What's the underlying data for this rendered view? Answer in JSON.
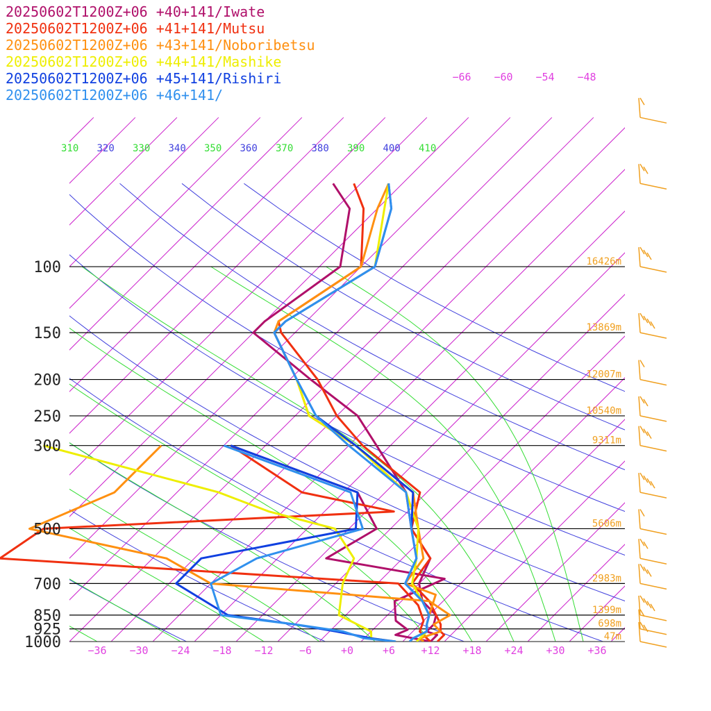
{
  "colors": {
    "isotherm": "#cc22cc",
    "theta": "#4040dd",
    "thetae": "#33dd33",
    "isobar": "#000000",
    "pressure_label": "#222222",
    "temp_label": "#e040e0",
    "height_label": "#f0a020",
    "wind_barb": "#f0a020"
  },
  "chart_data": {
    "type": "line",
    "title": "",
    "legend_position": "top-left",
    "pressure_levels": [
      100,
      150,
      200,
      250,
      300,
      500,
      700,
      850,
      925,
      1000
    ],
    "pressure_labels": [
      "100",
      "150",
      "200",
      "250",
      "300",
      "500",
      "700",
      "850",
      "925",
      "1000"
    ],
    "temp_ticks": [
      -36,
      -30,
      -24,
      -18,
      -12,
      -6,
      0,
      6,
      12,
      18,
      24,
      30,
      36
    ],
    "temp_tick_labels": [
      "−36",
      "−30",
      "−24",
      "−18",
      "−12",
      "−6",
      "+0",
      "+6",
      "+12",
      "+18",
      "+24",
      "+30",
      "+36"
    ],
    "xlim": [
      -40,
      40
    ],
    "upper_temp_labels": [
      "−66",
      "−60",
      "−54",
      "−48"
    ],
    "theta_labels": [
      {
        "text": "310",
        "kind": "thetae"
      },
      {
        "text": "320",
        "kind": "theta"
      },
      {
        "text": "330",
        "kind": "thetae"
      },
      {
        "text": "340",
        "kind": "theta"
      },
      {
        "text": "350",
        "kind": "thetae"
      },
      {
        "text": "360",
        "kind": "theta"
      },
      {
        "text": "370",
        "kind": "thetae"
      },
      {
        "text": "380",
        "kind": "theta"
      },
      {
        "text": "390",
        "kind": "thetae"
      },
      {
        "text": "400",
        "kind": "theta"
      },
      {
        "text": "410",
        "kind": "thetae"
      }
    ],
    "heights": [
      {
        "p": 100,
        "label": "16426m"
      },
      {
        "p": 150,
        "label": "13869m"
      },
      {
        "p": 200,
        "label": "12007m"
      },
      {
        "p": 250,
        "label": "10540m"
      },
      {
        "p": 300,
        "label": "9311m"
      },
      {
        "p": 500,
        "label": "5606m"
      },
      {
        "p": 700,
        "label": "2983m"
      },
      {
        "p": 850,
        "label": "1399m"
      },
      {
        "p": 925,
        "label": "698m"
      },
      {
        "p": 1000,
        "label": "47m"
      }
    ],
    "series": [
      {
        "name": "20250602T1200Z+06 +40+141/Iwate",
        "color": "#b0106a",
        "temp": [
          [
            60,
            -68
          ],
          [
            70,
            -62
          ],
          [
            100,
            -55
          ],
          [
            140,
            -58
          ],
          [
            150,
            -58
          ],
          [
            200,
            -43
          ],
          [
            250,
            -31
          ],
          [
            300,
            -24
          ],
          [
            400,
            -13
          ],
          [
            500,
            -7
          ],
          [
            600,
            0
          ],
          [
            700,
            2
          ],
          [
            780,
            5
          ],
          [
            850,
            9
          ],
          [
            900,
            10
          ],
          [
            940,
            10
          ],
          [
            960,
            12
          ],
          [
            1000,
            12
          ]
        ],
        "dewp": [
          [
            300,
            -45
          ],
          [
            400,
            -20
          ],
          [
            500,
            -12
          ],
          [
            600,
            -15
          ],
          [
            680,
            5
          ],
          [
            780,
            1
          ],
          [
            880,
            4
          ],
          [
            930,
            7
          ],
          [
            960,
            6
          ],
          [
            1000,
            12
          ]
        ]
      },
      {
        "name": "20250602T1200Z+06 +41+141/Mutsu",
        "color": "#f03010",
        "temp": [
          [
            60,
            -65
          ],
          [
            70,
            -60
          ],
          [
            100,
            -52
          ],
          [
            140,
            -56
          ],
          [
            150,
            -54
          ],
          [
            200,
            -42
          ],
          [
            250,
            -34
          ],
          [
            300,
            -26
          ],
          [
            400,
            -11
          ],
          [
            500,
            -7
          ],
          [
            600,
            0
          ],
          [
            700,
            1
          ],
          [
            780,
            6
          ],
          [
            850,
            9
          ],
          [
            900,
            11
          ],
          [
            940,
            12
          ],
          [
            960,
            13
          ],
          [
            1000,
            13
          ]
        ],
        "dewp": [
          [
            300,
            -45
          ],
          [
            400,
            -28
          ],
          [
            450,
            -12
          ],
          [
            500,
            -60
          ],
          [
            600,
            -62
          ],
          [
            700,
            -1
          ],
          [
            800,
            5
          ],
          [
            880,
            8
          ],
          [
            940,
            9
          ],
          [
            980,
            11
          ],
          [
            1000,
            12
          ]
        ]
      },
      {
        "name": "20250602T1200Z+06 +43+141/Noboribetsu",
        "color": "#ff9010",
        "temp": [
          [
            60,
            -60
          ],
          [
            70,
            -58
          ],
          [
            100,
            -52
          ],
          [
            140,
            -56
          ],
          [
            150,
            -55
          ],
          [
            200,
            -45
          ],
          [
            250,
            -38
          ],
          [
            300,
            -27
          ],
          [
            400,
            -12
          ],
          [
            500,
            -6
          ],
          [
            600,
            -1
          ],
          [
            700,
            0
          ],
          [
            750,
            6
          ],
          [
            850,
            8
          ],
          [
            900,
            9
          ],
          [
            940,
            10
          ],
          [
            980,
            10
          ],
          [
            1000,
            11
          ]
        ],
        "dewp": [
          [
            300,
            -55
          ],
          [
            400,
            -55
          ],
          [
            500,
            -62
          ],
          [
            600,
            -38
          ],
          [
            700,
            -28
          ],
          [
            780,
            6
          ],
          [
            850,
            11
          ],
          [
            900,
            10
          ],
          [
            940,
            12
          ],
          [
            980,
            10
          ],
          [
            1000,
            11
          ]
        ]
      },
      {
        "name": "20250602T1200Z+06 +44+141/Mashike",
        "color": "#eeee00",
        "temp": [
          [
            60,
            -60
          ],
          [
            70,
            -57
          ],
          [
            100,
            -50
          ],
          [
            140,
            -55
          ],
          [
            150,
            -55
          ],
          [
            200,
            -45
          ],
          [
            250,
            -38
          ],
          [
            300,
            -27
          ],
          [
            400,
            -13
          ],
          [
            500,
            -6
          ],
          [
            600,
            -2
          ],
          [
            700,
            1
          ],
          [
            780,
            5
          ],
          [
            850,
            8
          ],
          [
            900,
            9
          ],
          [
            940,
            10
          ],
          [
            980,
            10
          ],
          [
            1000,
            10
          ]
        ],
        "dewp": [
          [
            300,
            -72
          ],
          [
            400,
            -40
          ],
          [
            450,
            -30
          ],
          [
            500,
            -18
          ],
          [
            600,
            -11
          ],
          [
            700,
            -9
          ],
          [
            850,
            -5
          ],
          [
            900,
            -1
          ],
          [
            940,
            2
          ],
          [
            980,
            3
          ],
          [
            1000,
            7
          ]
        ]
      },
      {
        "name": "20250602T1200Z+06 +45+141/Rishiri",
        "color": "#1040e0",
        "temp": [
          [
            60,
            -60
          ],
          [
            70,
            -56
          ],
          [
            100,
            -50
          ],
          [
            140,
            -55
          ],
          [
            150,
            -55
          ],
          [
            200,
            -45
          ],
          [
            250,
            -37
          ],
          [
            300,
            -27
          ],
          [
            400,
            -12
          ],
          [
            500,
            -7
          ],
          [
            600,
            -2
          ],
          [
            700,
            0
          ],
          [
            780,
            5
          ],
          [
            850,
            8
          ],
          [
            900,
            9
          ],
          [
            940,
            10
          ],
          [
            980,
            9
          ],
          [
            1000,
            9
          ]
        ],
        "dewp": [
          [
            300,
            -45
          ],
          [
            400,
            -20
          ],
          [
            500,
            -15
          ],
          [
            600,
            -33
          ],
          [
            700,
            -33
          ],
          [
            850,
            -21
          ],
          [
            900,
            -10
          ],
          [
            940,
            -3
          ],
          [
            980,
            3
          ],
          [
            1000,
            7
          ]
        ]
      },
      {
        "name": "20250602T1200Z+06 +46+141/",
        "color": "#3090ee",
        "temp": [
          [
            60,
            -60
          ],
          [
            70,
            -56
          ],
          [
            100,
            -50
          ],
          [
            140,
            -55
          ],
          [
            150,
            -55
          ],
          [
            200,
            -45
          ],
          [
            250,
            -37
          ],
          [
            300,
            -28
          ],
          [
            400,
            -13
          ],
          [
            500,
            -7
          ],
          [
            600,
            -2
          ],
          [
            700,
            0
          ],
          [
            780,
            5
          ],
          [
            850,
            8
          ],
          [
            900,
            9
          ],
          [
            940,
            10
          ],
          [
            980,
            9
          ],
          [
            1000,
            9
          ]
        ],
        "dewp": [
          [
            300,
            -46
          ],
          [
            400,
            -21
          ],
          [
            500,
            -14
          ],
          [
            600,
            -25
          ],
          [
            700,
            -28
          ],
          [
            850,
            -22
          ],
          [
            900,
            -10
          ],
          [
            940,
            -2
          ],
          [
            980,
            2
          ],
          [
            1000,
            7
          ]
        ]
      }
    ]
  }
}
